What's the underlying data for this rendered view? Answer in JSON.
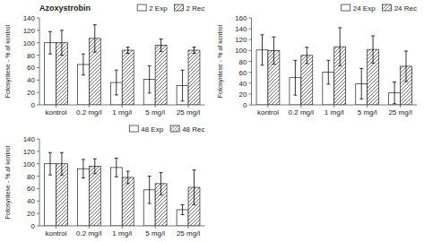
{
  "chart_data": [
    {
      "type": "bar",
      "title": "Azoxystrobin",
      "categories": [
        "kontrol",
        "0.2 mg/l",
        "1 mg/l",
        "5 mg/l",
        "25 mg/l"
      ],
      "series": [
        {
          "name": "2 Exp",
          "color": "white",
          "values": [
            100,
            65,
            36,
            41,
            31
          ],
          "errors": [
            18,
            17,
            20,
            22,
            25
          ]
        },
        {
          "name": "2 Rec",
          "color": "white",
          "values": [
            100,
            107,
            88,
            96,
            88
          ],
          "errors": [
            20,
            22,
            5,
            10,
            5
          ]
        }
      ],
      "ylabel": "Fotosyntese - % af kontrol",
      "ylim": [
        0,
        140
      ],
      "yticks": [
        0,
        20,
        40,
        60,
        80,
        100,
        120,
        140
      ],
      "legend": "upper right"
    },
    {
      "type": "bar",
      "categories": [
        "kontrol",
        "0.2 mg/l",
        "1 mg/l",
        "5 mg/l",
        "25 mg/l"
      ],
      "series": [
        {
          "name": "24 Exp",
          "color": "white",
          "values": [
            101,
            50,
            60,
            39,
            22
          ],
          "errors": [
            28,
            32,
            22,
            28,
            20
          ]
        },
        {
          "name": "24 Rec",
          "color": "white",
          "values": [
            100,
            91,
            107,
            102,
            71
          ],
          "errors": [
            25,
            15,
            35,
            25,
            28
          ]
        }
      ],
      "ylabel": "Fotosyntese - % af kontrol",
      "ylim": [
        0,
        160
      ],
      "yticks": [
        0,
        20,
        40,
        60,
        80,
        100,
        120,
        140,
        160
      ],
      "legend": "upper right"
    },
    {
      "type": "bar",
      "categories": [
        "kontrol",
        "0.2 mg/l",
        "1 mg/l",
        "5 mg/l",
        "25 mg/l"
      ],
      "series": [
        {
          "name": "48 Exp",
          "color": "white",
          "values": [
            100,
            92,
            94,
            58,
            26
          ],
          "errors": [
            18,
            15,
            15,
            22,
            8
          ]
        },
        {
          "name": "48 Rec",
          "color": "white",
          "values": [
            100,
            96,
            78,
            68,
            62
          ],
          "errors": [
            18,
            12,
            10,
            18,
            28
          ]
        }
      ],
      "ylabel": "Fotosyntese - % af kontrol",
      "ylim": [
        0,
        140
      ],
      "yticks": [
        0,
        20,
        40,
        60,
        80,
        100,
        120,
        140
      ],
      "legend": "upper right"
    }
  ]
}
